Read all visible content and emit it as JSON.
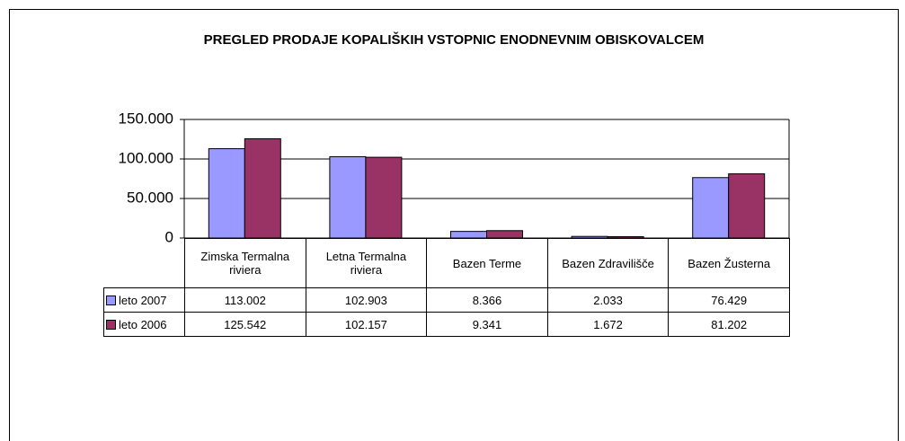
{
  "chart_data": {
    "type": "bar",
    "title": "PREGLED PRODAJE KOPALIŠKIH VSTOPNIC ENODNEVNIM OBISKOVALCEM",
    "categories": [
      "Zimska Termalna riviera",
      "Letna Termalna riviera",
      "Bazen Terme",
      "Bazen Zdravilišče",
      "Bazen Žusterna"
    ],
    "series": [
      {
        "name": "leto 2007",
        "color": "#9999ff",
        "values": [
          113002,
          102903,
          8366,
          2033,
          76429
        ],
        "value_labels": [
          "113.002",
          "102.903",
          "8.366",
          "2.033",
          "76.429"
        ]
      },
      {
        "name": "leto 2006",
        "color": "#993366",
        "values": [
          125542,
          102157,
          9341,
          1672,
          81202
        ],
        "value_labels": [
          "125.542",
          "102.157",
          "9.341",
          "1.672",
          "81.202"
        ]
      }
    ],
    "ylim": [
      0,
      150000
    ],
    "yticks": [
      0,
      {
        "value": 50000,
        "label": "50.000"
      },
      {
        "value": 100000,
        "label": "100.000"
      },
      {
        "value": 150000,
        "label": "150.000"
      }
    ],
    "grid": true
  }
}
